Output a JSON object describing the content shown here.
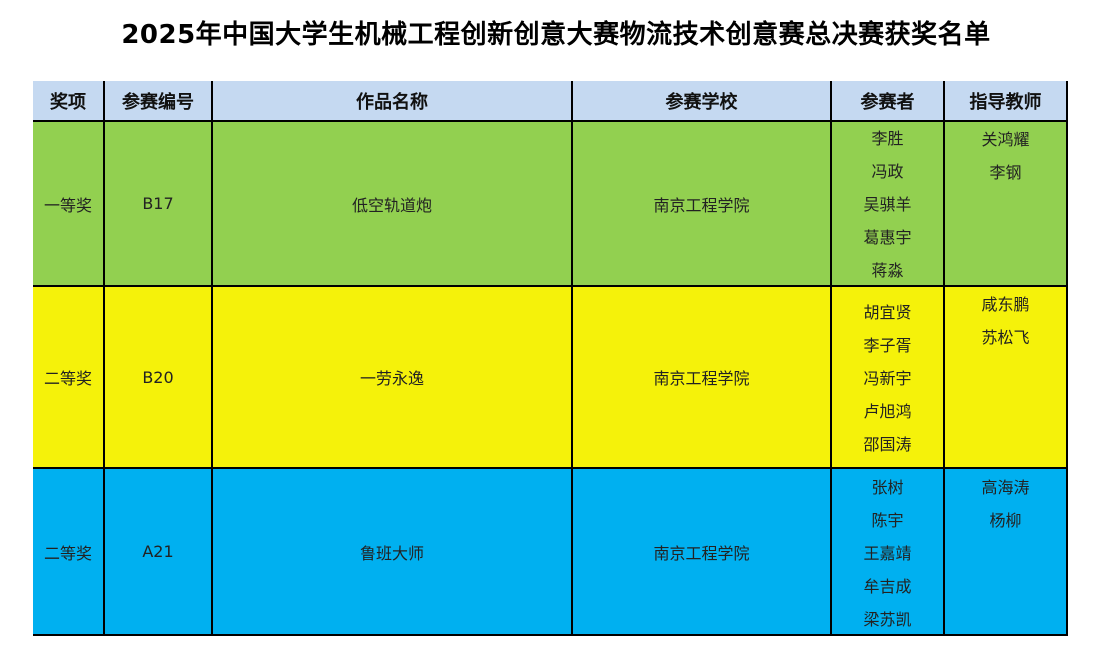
{
  "title": "2025年中国大学生机械工程创新创意大赛物流技术创意赛总决赛获奖名单",
  "headers": [
    "奖项",
    "参赛编号",
    "作品名称",
    "参赛学校",
    "参赛者",
    "指导教师"
  ],
  "colors": {
    "header": "#c5d9f1",
    "row1": "#92d050",
    "row2": "#f5f20a",
    "row3": "#00b0f0"
  },
  "rows": [
    {
      "award": "一等奖",
      "id": "B17",
      "work": "低空轨道炮",
      "school": "南京工程学院",
      "participants": [
        "李胜",
        "冯政",
        "吴骐羊",
        "葛惠宇",
        "蒋淼"
      ],
      "advisors": [
        "关鸿耀",
        "李钢"
      ]
    },
    {
      "award": "二等奖",
      "id": "B20",
      "work": "一劳永逸",
      "school": "南京工程学院",
      "participants": [
        "胡宜贤",
        "李子胥",
        "冯新宇",
        "卢旭鸿",
        "邵国涛"
      ],
      "advisors": [
        "咸东鹏",
        "苏松飞"
      ]
    },
    {
      "award": "二等奖",
      "id": "A21",
      "work": "鲁班大师",
      "school": "南京工程学院",
      "participants": [
        "张树",
        "陈宇",
        "王嘉靖",
        "牟吉成",
        "梁苏凯"
      ],
      "advisors": [
        "高海涛",
        "杨柳"
      ]
    }
  ]
}
